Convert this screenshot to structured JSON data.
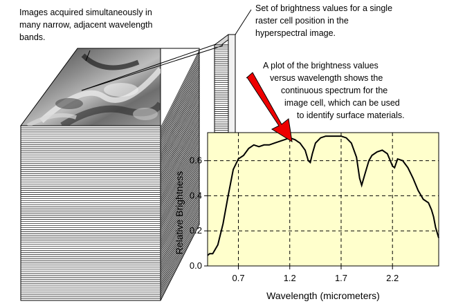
{
  "annotations": {
    "images_note": [
      "Images acquired simultaneously in",
      "many narrow, adjacent wavelength",
      "bands."
    ],
    "pixel_note": [
      "Set of brightness values for a single",
      "raster cell position in the",
      "hyperspectral image."
    ],
    "plot_note": [
      "A plot of the brightness values",
      "versus wavelength shows the",
      "continuous spectrum for the",
      "image cell, which can be used",
      "to identify surface materials."
    ]
  },
  "colors": {
    "plot_background": "#ffffcc",
    "arrow": "#ee0000",
    "spectrum_line": "#000000"
  },
  "chart_data": {
    "type": "line",
    "xlabel": "Wavelength (micrometers)",
    "ylabel": "Relative Brightness",
    "xlim": [
      0.4,
      2.65
    ],
    "ylim": [
      0.0,
      0.76
    ],
    "x_ticks": [
      0.7,
      1.2,
      1.7,
      2.2
    ],
    "x_tick_labels": [
      "0.7",
      "1.2",
      "1.7",
      "2.2"
    ],
    "y_ticks": [
      0.0,
      0.2,
      0.4,
      0.6
    ],
    "y_tick_labels": [
      "0.0",
      "0.2",
      "0.4",
      "0.6"
    ],
    "grid": true,
    "series": [
      {
        "x": [
          0.4,
          0.42,
          0.45,
          0.5,
          0.55,
          0.6,
          0.65,
          0.7,
          0.75,
          0.8,
          0.85,
          0.9,
          0.95,
          1.0,
          1.05,
          1.1,
          1.15,
          1.2,
          1.25,
          1.3,
          1.35,
          1.38,
          1.4,
          1.42,
          1.45,
          1.5,
          1.55,
          1.6,
          1.65,
          1.7,
          1.75,
          1.8,
          1.85,
          1.88,
          1.9,
          1.93,
          1.97,
          2.0,
          2.05,
          2.1,
          2.15,
          2.2,
          2.22,
          2.25,
          2.3,
          2.35,
          2.4,
          2.45,
          2.5,
          2.55,
          2.58,
          2.6,
          2.62,
          2.65
        ],
        "y": [
          0.06,
          0.07,
          0.07,
          0.12,
          0.24,
          0.4,
          0.55,
          0.61,
          0.63,
          0.67,
          0.69,
          0.68,
          0.69,
          0.69,
          0.7,
          0.71,
          0.72,
          0.73,
          0.72,
          0.7,
          0.66,
          0.6,
          0.59,
          0.64,
          0.7,
          0.73,
          0.74,
          0.74,
          0.74,
          0.74,
          0.73,
          0.7,
          0.62,
          0.5,
          0.46,
          0.52,
          0.6,
          0.63,
          0.65,
          0.66,
          0.64,
          0.57,
          0.56,
          0.61,
          0.6,
          0.56,
          0.5,
          0.43,
          0.38,
          0.36,
          0.32,
          0.28,
          0.22,
          0.16
        ]
      }
    ]
  }
}
